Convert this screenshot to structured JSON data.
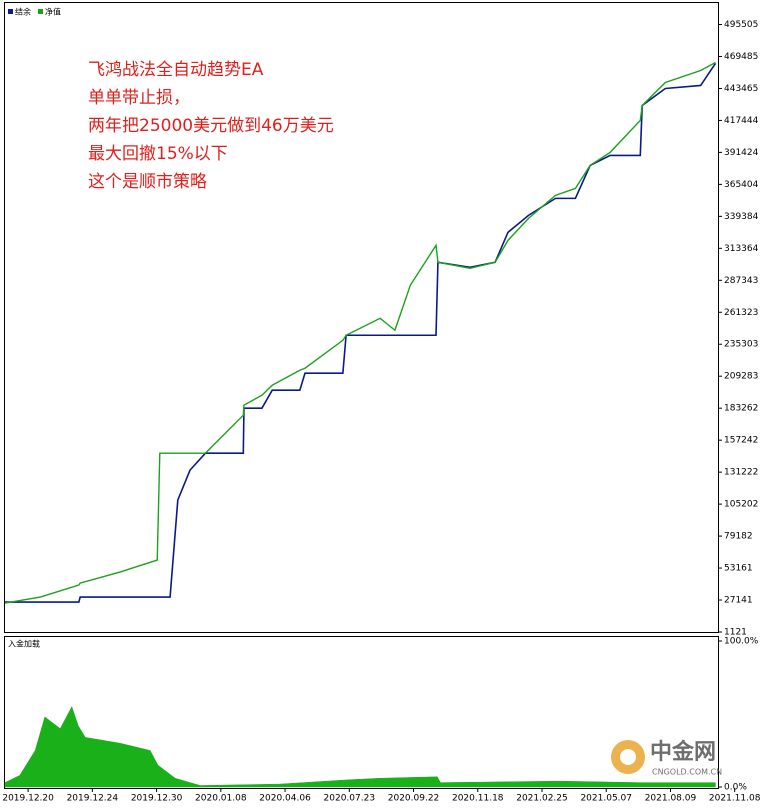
{
  "chart_data": [
    {
      "type": "line",
      "annotations": [
        "飞鸿战法全自动趋势EA",
        "单单带止损，",
        "两年把25000美元做到46万美元",
        "最大回撤15%以下",
        "这个是顺市策略"
      ],
      "x": [
        0,
        5.5,
        11.5,
        11.7,
        17.9,
        23.7,
        24.1,
        25.7,
        26.9,
        28.8,
        31.2,
        37.1,
        37.2,
        40.0,
        41.6,
        45.9,
        46.7,
        52.6,
        53.1,
        58.4,
        60.7,
        63.1,
        67.1,
        67.4,
        72.4,
        76.3,
        78.3,
        81.5,
        85.7,
        88.8,
        91.1,
        94.2,
        98.9,
        99.2,
        102.8,
        108.3,
        110.6
      ],
      "series": [
        {
          "name": "结余",
          "color": "#0a1a8a",
          "values": [
            25514,
            25514,
            25514,
            29580,
            29580,
            29580,
            29580,
            29580,
            108450,
            132843,
            146666,
            146666,
            183255,
            183255,
            197891,
            197891,
            211714,
            211714,
            242612,
            242612,
            242612,
            242612,
            242612,
            301968,
            297903,
            301968,
            326361,
            340184,
            354006,
            354006,
            380839,
            388970,
            388970,
            429625,
            443447,
            445887,
            463775
          ]
        },
        {
          "name": "净值",
          "color": "#1aa31a",
          "values": [
            24701,
            29580,
            39337,
            40963,
            49907,
            59664,
            146666,
            146666,
            146666,
            146666,
            146666,
            177564,
            185695,
            193826,
            201957,
            214153,
            215779,
            238546,
            242612,
            256434,
            246677,
            283267,
            315791,
            301968,
            297089,
            301968,
            319856,
            337744,
            356446,
            362137,
            380839,
            391409,
            417428,
            429625,
            448326,
            458083,
            464588
          ]
        }
      ],
      "xlim": [
        0,
        111
      ],
      "xticks": [
        {
          "value": 3.6,
          "label": "2019.12.20"
        },
        {
          "value": 13.6,
          "label": "2019.12.24"
        },
        {
          "value": 23.6,
          "label": "2019.12.30"
        },
        {
          "value": 33.6,
          "label": "2020.01.08"
        },
        {
          "value": 43.6,
          "label": "2020.04.06"
        },
        {
          "value": 53.6,
          "label": "2020.07.23"
        },
        {
          "value": 63.6,
          "label": "2020.09.22"
        },
        {
          "value": 73.6,
          "label": "2020.11.18"
        },
        {
          "value": 83.6,
          "label": "2021.02.25"
        },
        {
          "value": 93.6,
          "label": "2021.05.07"
        },
        {
          "value": 103.6,
          "label": "2021.08.09"
        },
        {
          "value": 113.6,
          "label": "2021.11.08"
        }
      ],
      "ylim": [
        1121,
        513000
      ],
      "yticks": [
        1121,
        27141,
        53161,
        79182,
        105202,
        131222,
        157242,
        183262,
        209283,
        235303,
        261323,
        287343,
        313364,
        339384,
        365404,
        391424,
        417444,
        443465,
        469485,
        495505
      ],
      "grid": false
    },
    {
      "type": "area",
      "title": "入金加载",
      "color": "#19b019",
      "x": [
        0,
        2.3,
        4.7,
        6.2,
        8.6,
        10.4,
        11.4,
        12.5,
        17.9,
        22.6,
        23.8,
        26.5,
        30.4,
        42.8,
        53.7,
        58.4,
        67.3,
        67.8,
        86.4,
        98.9,
        110.6
      ],
      "values": [
        3,
        8,
        25,
        48,
        40,
        55,
        42,
        34,
        30,
        25,
        15,
        6,
        1,
        2,
        5,
        6,
        7,
        3,
        4,
        3,
        3
      ],
      "xlim": [
        0,
        111
      ],
      "ylim": [
        0,
        100
      ],
      "yticks": [
        {
          "value": 0,
          "label": "0.0%"
        },
        {
          "value": 100,
          "label": "100.0%"
        }
      ]
    }
  ],
  "watermark": {
    "text": "中金网",
    "sub": "CNGOLD.COM.CN"
  }
}
